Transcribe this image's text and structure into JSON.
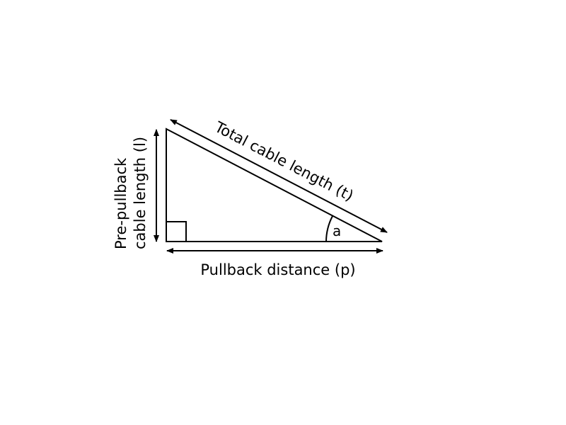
{
  "diagram": {
    "hypotenuse_label": "Total cable length (t)",
    "base_label": "Pullback distance (p)",
    "vertical_label_line1": "Pre-pullback",
    "vertical_label_line2": "cable length (l)",
    "angle_label": "a"
  },
  "colors": {
    "stroke": "#000000",
    "background": "#ffffff"
  }
}
